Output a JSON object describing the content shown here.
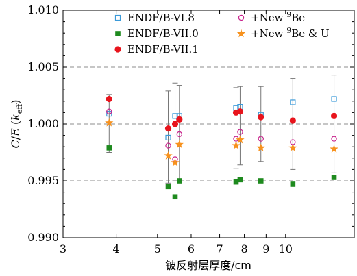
{
  "chart_data": {
    "type": "scatter",
    "xlabel": "铍反射层厚度/cm",
    "ylabel_main": "C",
    "ylabel_slash": "/",
    "ylabel_E": "E",
    "ylabel_open": " (",
    "ylabel_k": "k",
    "ylabel_sub": "eff",
    "ylabel_close": ")",
    "x_scale": "log",
    "xlim": [
      3,
      14.5
    ],
    "ylim": [
      0.99,
      1.01
    ],
    "x_ticks": [
      3,
      4,
      5,
      6,
      7,
      8,
      9,
      10
    ],
    "x_tick_labels": [
      "3",
      "4",
      "5",
      "6",
      "7",
      "8",
      "9",
      "10"
    ],
    "y_ticks": [
      0.99,
      0.995,
      1.0,
      1.005,
      1.01
    ],
    "y_tick_labels": [
      "0.990",
      "0.995",
      "1.000",
      "1.005",
      "1.010"
    ],
    "reference_lines": [
      0.995,
      1.0,
      1.005
    ],
    "legend_position": "top",
    "error_bars": [
      {
        "x": 3.85,
        "low": 0.9975,
        "high": 1.0026
      },
      {
        "x": 5.3,
        "low": 0.9948,
        "high": 1.0029
      },
      {
        "x": 5.5,
        "low": 0.995,
        "high": 1.0036
      },
      {
        "x": 5.63,
        "low": 0.995,
        "high": 1.0034
      },
      {
        "x": 7.65,
        "low": 0.9961,
        "high": 1.0032
      },
      {
        "x": 7.82,
        "low": 0.9964,
        "high": 1.0033
      },
      {
        "x": 8.75,
        "low": 0.9967,
        "high": 1.0033
      },
      {
        "x": 10.4,
        "low": 0.996,
        "high": 1.004
      },
      {
        "x": 13.0,
        "low": 0.9957,
        "high": 1.0043
      }
    ],
    "series": [
      {
        "name": "ENDF/B-VI.8",
        "marker": "square-open",
        "color": "#3a9ad9",
        "points": [
          [
            3.85,
            1.0009
          ],
          [
            5.3,
            0.9988
          ],
          [
            5.5,
            1.0007
          ],
          [
            5.63,
            1.0007
          ],
          [
            7.65,
            1.0014
          ],
          [
            7.82,
            1.0015
          ],
          [
            8.75,
            1.0008
          ],
          [
            10.4,
            1.0019
          ],
          [
            13.0,
            1.0022
          ]
        ]
      },
      {
        "name": "ENDF/B-VII.0",
        "marker": "square-filled",
        "color": "#1e8a1e",
        "points": [
          [
            3.85,
            0.9979
          ],
          [
            5.3,
            0.9945
          ],
          [
            5.5,
            0.9936
          ],
          [
            5.63,
            0.995
          ],
          [
            7.65,
            0.9949
          ],
          [
            7.82,
            0.9951
          ],
          [
            8.75,
            0.995
          ],
          [
            10.4,
            0.9947
          ],
          [
            13.0,
            0.9953
          ]
        ]
      },
      {
        "name": "ENDF/B-VII.1",
        "marker": "circle-filled",
        "color": "#e8141c",
        "points": [
          [
            3.85,
            1.0022
          ],
          [
            5.3,
            0.9996
          ],
          [
            5.5,
            1.0
          ],
          [
            5.63,
            1.0004
          ],
          [
            7.65,
            1.001
          ],
          [
            7.82,
            1.0011
          ],
          [
            8.75,
            1.0006
          ],
          [
            10.4,
            1.0003
          ],
          [
            13.0,
            1.0007
          ]
        ]
      },
      {
        "name_prefix": "+New ",
        "name_sup": "9",
        "name_suffix": "Be",
        "marker": "circle-open",
        "color": "#c8238c",
        "points": [
          [
            3.85,
            1.0011
          ],
          [
            5.3,
            0.9981
          ],
          [
            5.5,
            0.9969
          ],
          [
            5.63,
            0.9991
          ],
          [
            7.65,
            0.9987
          ],
          [
            7.82,
            0.9993
          ],
          [
            8.75,
            0.9987
          ],
          [
            10.4,
            0.9984
          ],
          [
            13.0,
            0.9987
          ]
        ]
      },
      {
        "name_prefix": "+New ",
        "name_sup": "9",
        "name_suffix": "Be & U",
        "marker": "star",
        "color": "#f7921e",
        "points": [
          [
            3.85,
            1.0001
          ],
          [
            5.3,
            0.9972
          ],
          [
            5.5,
            0.9966
          ],
          [
            5.63,
            0.9982
          ],
          [
            7.65,
            0.9981
          ],
          [
            7.82,
            0.9986
          ],
          [
            8.75,
            0.9979
          ],
          [
            10.4,
            0.9979
          ],
          [
            13.0,
            0.9978
          ]
        ]
      }
    ]
  }
}
